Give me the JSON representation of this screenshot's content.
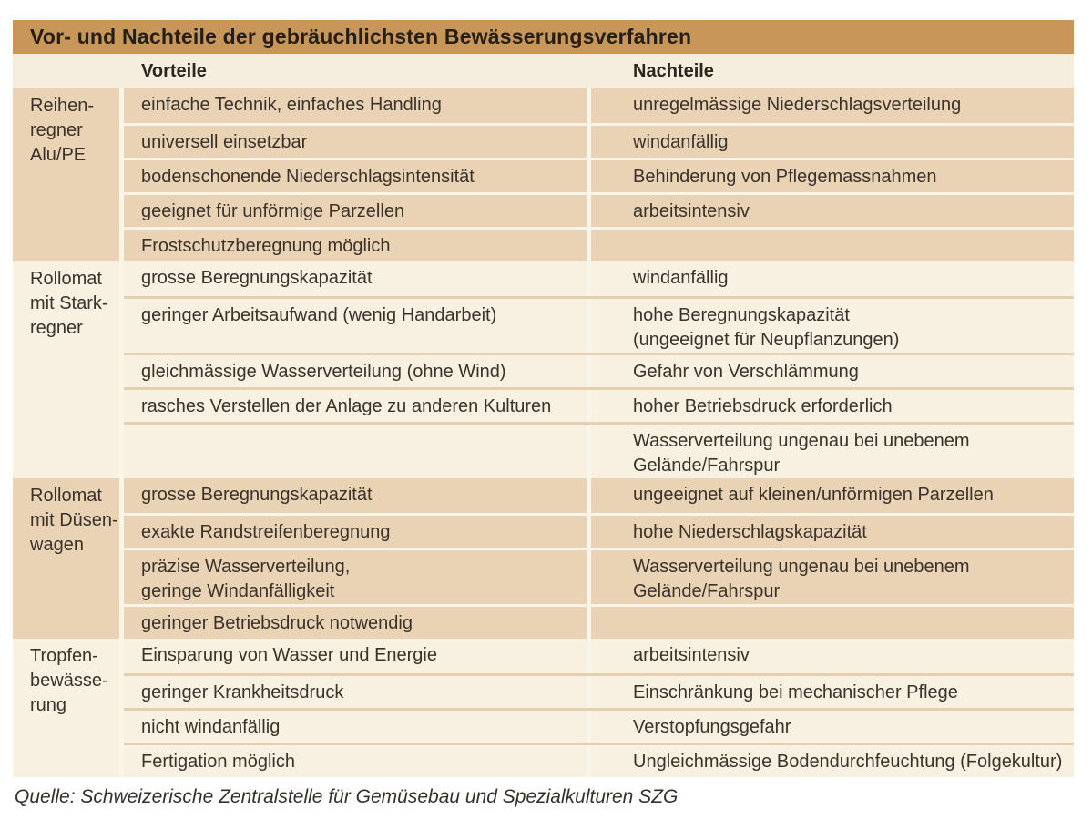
{
  "table": {
    "title": "Vor- und Nachteile der gebräuchlichsten Bewässerungsverfahren",
    "columns": {
      "advantages_header": "Vorteile",
      "disadvantages_header": "Nachteile"
    },
    "groups": [
      {
        "method_label": "Reihen-\nregner\nAlu/PE",
        "rows": [
          {
            "advantage": "einfache Technik, einfaches Handling",
            "disadvantage": "unregelmässige Niederschlagsverteilung"
          },
          {
            "advantage": "universell einsetzbar",
            "disadvantage": "windanfällig"
          },
          {
            "advantage": "bodenschonende Niederschlagsintensität",
            "disadvantage": "Behinderung von Pflegemassnahmen"
          },
          {
            "advantage": "geeignet für unförmige Parzellen",
            "disadvantage": "arbeitsintensiv"
          },
          {
            "advantage": "Frostschutzberegnung möglich",
            "disadvantage": ""
          }
        ]
      },
      {
        "method_label": "Rollomat\nmit Stark-\nregner",
        "rows": [
          {
            "advantage": "grosse Beregnungskapazität",
            "disadvantage": "windanfällig"
          },
          {
            "advantage": "geringer Arbeitsaufwand (wenig Handarbeit)",
            "disadvantage": "hohe Beregnungskapazität\n(ungeeignet für Neupflanzungen)"
          },
          {
            "advantage": "gleichmässige Wasserverteilung (ohne Wind)",
            "disadvantage": "Gefahr von Verschlämmung"
          },
          {
            "advantage": "rasches Verstellen der Anlage zu anderen Kulturen",
            "disadvantage": "hoher Betriebsdruck erforderlich"
          },
          {
            "advantage": "",
            "disadvantage": "Wasserverteilung ungenau bei unebenem\nGelände/Fahrspur"
          }
        ]
      },
      {
        "method_label": "Rollomat\nmit Düsen-\nwagen",
        "rows": [
          {
            "advantage": "grosse Beregnungskapazität",
            "disadvantage": "ungeeignet auf kleinen/unförmigen Parzellen"
          },
          {
            "advantage": "exakte Randstreifenberegnung",
            "disadvantage": "hohe Niederschlagskapazität"
          },
          {
            "advantage": "präzise Wasserverteilung,\ngeringe Windanfälligkeit",
            "disadvantage": "Wasserverteilung ungenau bei unebenem\nGelände/Fahrspur"
          },
          {
            "advantage": "geringer Betriebsdruck notwendig",
            "disadvantage": ""
          }
        ]
      },
      {
        "method_label": "Tropfen-\nbewässe-\nrung",
        "rows": [
          {
            "advantage": "Einsparung von Wasser und Energie",
            "disadvantage": "arbeitsintensiv"
          },
          {
            "advantage": "geringer Krankheitsdruck",
            "disadvantage": "Einschränkung bei mechanischer Pflege"
          },
          {
            "advantage": "nicht windanfällig",
            "disadvantage": "Verstopfungsgefahr"
          },
          {
            "advantage": "Fertigation möglich",
            "disadvantage": "Ungleichmässige Bodendurchfeuchtung (Folgekultur)"
          }
        ]
      }
    ],
    "source": "Quelle: Schweizerische Zentralstelle für Gemüsebau und Spezialkulturen SZG"
  },
  "colors": {
    "title_bar_bg": "#c9965a",
    "header_row_bg": "#f5edde",
    "group_dark_bg": "#ead3b5",
    "group_light_bg": "#f8f0e1",
    "separator_light": "#faf4e7",
    "separator_tan": "#e3d0ae",
    "text": "#3a332b"
  }
}
